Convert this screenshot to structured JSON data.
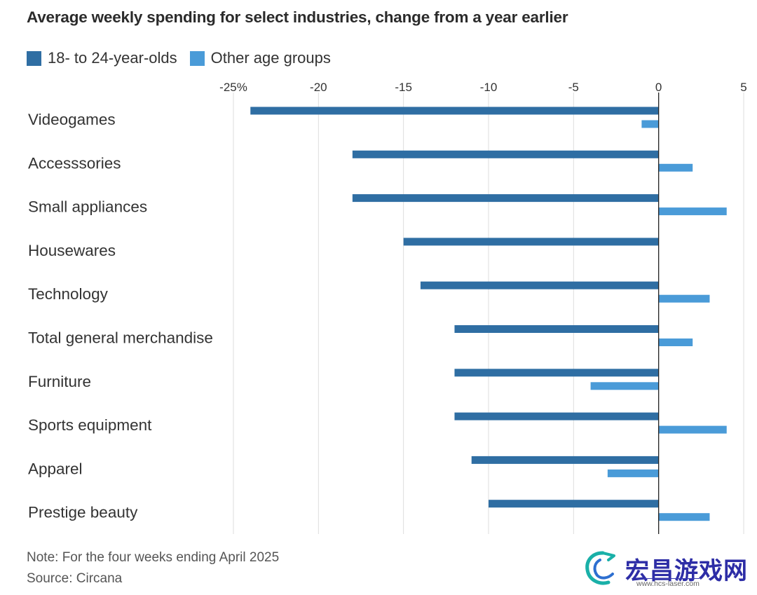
{
  "chart_data": {
    "type": "bar",
    "orientation": "horizontal",
    "title": "Average weekly spending for select industries, change from a year earlier",
    "categories": [
      "Videogames",
      "Accesssories",
      "Small appliances",
      "Housewares",
      "Technology",
      "Total general merchandise",
      "Furniture",
      "Sports equipment",
      "Apparel",
      "Prestige beauty"
    ],
    "series": [
      {
        "name": "18- to 24-year-olds",
        "color": "#2f6ea3",
        "values": [
          -24,
          -18,
          -18,
          -15,
          -14,
          -12,
          -12,
          -12,
          -11,
          -10
        ]
      },
      {
        "name": "Other age groups",
        "color": "#4a9bd8",
        "values": [
          -1,
          2,
          4,
          0,
          3,
          2,
          -4,
          4,
          -3,
          3
        ]
      }
    ],
    "xlim": [
      -25,
      5
    ],
    "xticks": [
      -25,
      -20,
      -15,
      -10,
      -5,
      0,
      5
    ],
    "xtick_labels": [
      "-25%",
      "-20",
      "-15",
      "-10",
      "-5",
      "0",
      "5"
    ],
    "legend_position": "top-left",
    "grid": true
  },
  "notes": {
    "note": "Note: For the four weeks ending April 2025",
    "source": "Source: Circana"
  },
  "watermark": {
    "text": "宏昌游戏网",
    "url": "www.hcs-laser.com"
  }
}
